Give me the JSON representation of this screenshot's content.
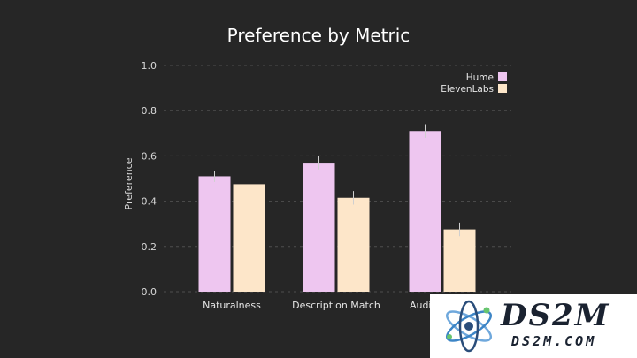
{
  "chart_data": {
    "type": "bar",
    "title": "Preference by Metric",
    "xlabel": "",
    "ylabel": "Preference",
    "ylim": [
      0,
      1.0
    ],
    "yticks": [
      "0.0",
      "0.2",
      "0.4",
      "0.6",
      "0.8",
      "1.0"
    ],
    "categories": [
      "Naturalness",
      "Description Match",
      "Audio Quality"
    ],
    "series": [
      {
        "name": "Hume",
        "values": [
          0.51,
          0.57,
          0.71
        ],
        "errors": [
          0.025,
          0.03,
          0.03
        ],
        "color": "#eec6f0"
      },
      {
        "name": "ElevenLabs",
        "values": [
          0.475,
          0.415,
          0.275
        ],
        "errors": [
          0.025,
          0.03,
          0.03
        ],
        "color": "#fde6c9"
      }
    ],
    "grid": true,
    "legend": "top-right"
  },
  "watermark": {
    "name": "DS2M",
    "sub": "DS2M.COM"
  }
}
